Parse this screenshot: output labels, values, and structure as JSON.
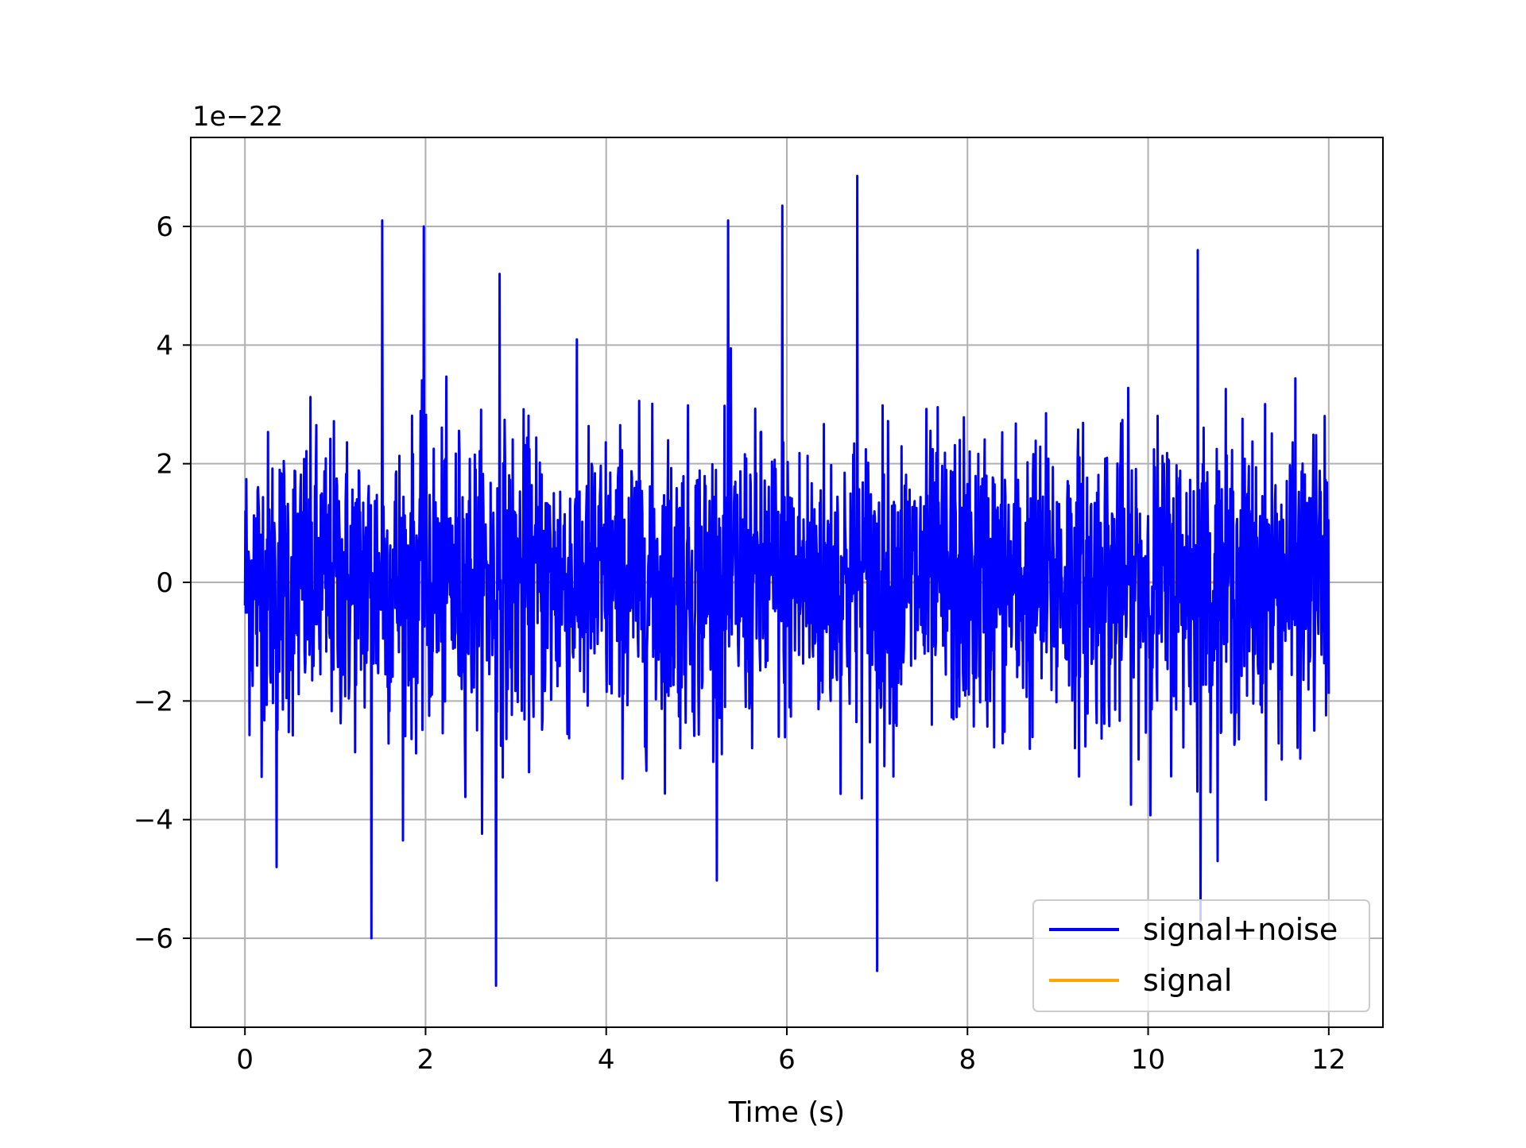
{
  "chart_data": {
    "type": "line",
    "title": "",
    "xlabel": "Time (s)",
    "ylabel": "",
    "offset_text": "1e−22",
    "y_scale_exponent": -22,
    "xlim": [
      -0.6,
      12.6
    ],
    "ylim": [
      -7.5,
      7.5
    ],
    "xticks": [
      0,
      2,
      4,
      6,
      8,
      10,
      12
    ],
    "xtick_labels": [
      "0",
      "2",
      "4",
      "6",
      "8",
      "10",
      "12"
    ],
    "yticks": [
      -6,
      -4,
      -2,
      0,
      2,
      4,
      6
    ],
    "ytick_labels": [
      "−6",
      "−4",
      "−2",
      "0",
      "2",
      "4",
      "6"
    ],
    "grid": true,
    "legend_position": "lower-right",
    "series": [
      {
        "name": "signal+noise",
        "color": "#0000ff",
        "x_range": [
          0,
          12
        ],
        "peak_max": 6.85,
        "peak_min": -6.8,
        "typical_envelope": [
          -3.0,
          3.0
        ],
        "notable_peaks": [
          {
            "x": 0.35,
            "y": -4.8
          },
          {
            "x": 1.4,
            "y": -6.0
          },
          {
            "x": 1.52,
            "y": 6.1
          },
          {
            "x": 1.98,
            "y": 6.0
          },
          {
            "x": 2.78,
            "y": -6.8
          },
          {
            "x": 2.82,
            "y": 5.2
          },
          {
            "x": 5.35,
            "y": 6.1
          },
          {
            "x": 5.95,
            "y": 6.35
          },
          {
            "x": 6.78,
            "y": 6.85
          },
          {
            "x": 7.0,
            "y": -6.55
          },
          {
            "x": 10.55,
            "y": 5.6
          },
          {
            "x": 10.58,
            "y": -5.7
          }
        ]
      },
      {
        "name": "signal",
        "color": "#ffa500",
        "x_range": [
          0,
          12
        ],
        "values_constant": 0
      }
    ]
  }
}
